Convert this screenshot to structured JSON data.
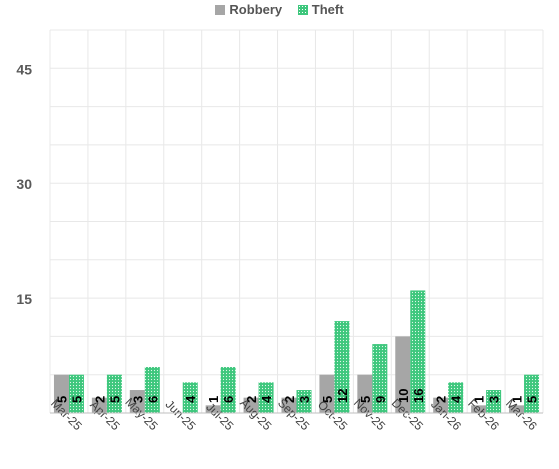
{
  "chart_data": {
    "type": "bar",
    "categories": [
      "Mar-25",
      "Apr-25",
      "May-25",
      "Jun-25",
      "Jul-25",
      "Aug-25",
      "Sep-25",
      "Oct-25",
      "Nov-25",
      "Dec-25",
      "Jan-26",
      "Feb-26",
      "Mar-26"
    ],
    "series": [
      {
        "name": "Robbery",
        "color": "#a6a6a6",
        "values": [
          5,
          2,
          3,
          0,
          1,
          2,
          2,
          5,
          5,
          10,
          2,
          1,
          1
        ],
        "labels": [
          "5",
          "2",
          "3",
          "",
          "1",
          "2",
          "2",
          "5",
          "5",
          "10",
          "2",
          "1",
          "1"
        ]
      },
      {
        "name": "Theft",
        "color": "#3ec77d",
        "values": [
          5,
          5,
          6,
          4,
          6,
          4,
          3,
          12,
          9,
          16,
          4,
          3,
          5
        ],
        "labels": [
          "5",
          "5",
          "6",
          "4",
          "6",
          "4",
          "3",
          "12",
          "9",
          "16",
          "4",
          "3",
          "5"
        ]
      }
    ],
    "yticks": [
      15,
      30,
      45
    ],
    "ytick_labels": [
      "15",
      "30",
      "45"
    ],
    "ylim": [
      0,
      50
    ],
    "grid": true,
    "legend_position": "top-center"
  }
}
